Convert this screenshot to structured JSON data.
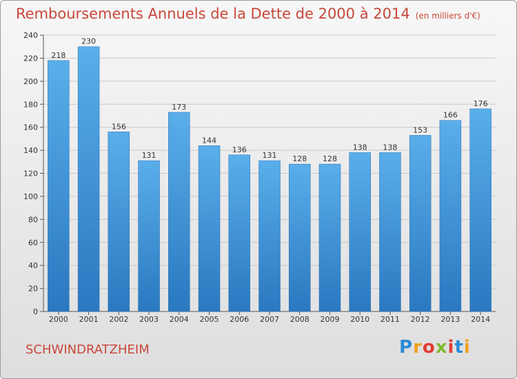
{
  "header": {
    "title": "Remboursements Annuels de la Dette de 2000 à 2014",
    "unit": "(en milliers d'€)"
  },
  "footer": {
    "commune": "SCHWINDRATZHEIM",
    "logo_letters": [
      "P",
      "r",
      "o",
      "x",
      "i",
      "t",
      "i"
    ],
    "logo_colors": [
      "#2a8bd6",
      "#f0a020",
      "#e03c31",
      "#7cbb2f",
      "#e03c31",
      "#2a8bd6",
      "#f0a020"
    ]
  },
  "chart_data": {
    "type": "bar",
    "title": "Remboursements Annuels de la Dette de 2000 à 2014",
    "subtitle": "(en milliers d'€)",
    "categories": [
      "2000",
      "2001",
      "2002",
      "2003",
      "2004",
      "2005",
      "2006",
      "2007",
      "2008",
      "2009",
      "2010",
      "2011",
      "2012",
      "2013",
      "2014"
    ],
    "values": [
      218,
      230,
      156,
      131,
      173,
      144,
      136,
      131,
      128,
      128,
      138,
      138,
      153,
      166,
      176
    ],
    "ylim": [
      0,
      240
    ],
    "yticks": [
      0,
      20,
      40,
      60,
      80,
      100,
      120,
      140,
      160,
      180,
      200,
      220,
      240
    ],
    "grid": true,
    "bar_color": "#3d8fd8"
  }
}
